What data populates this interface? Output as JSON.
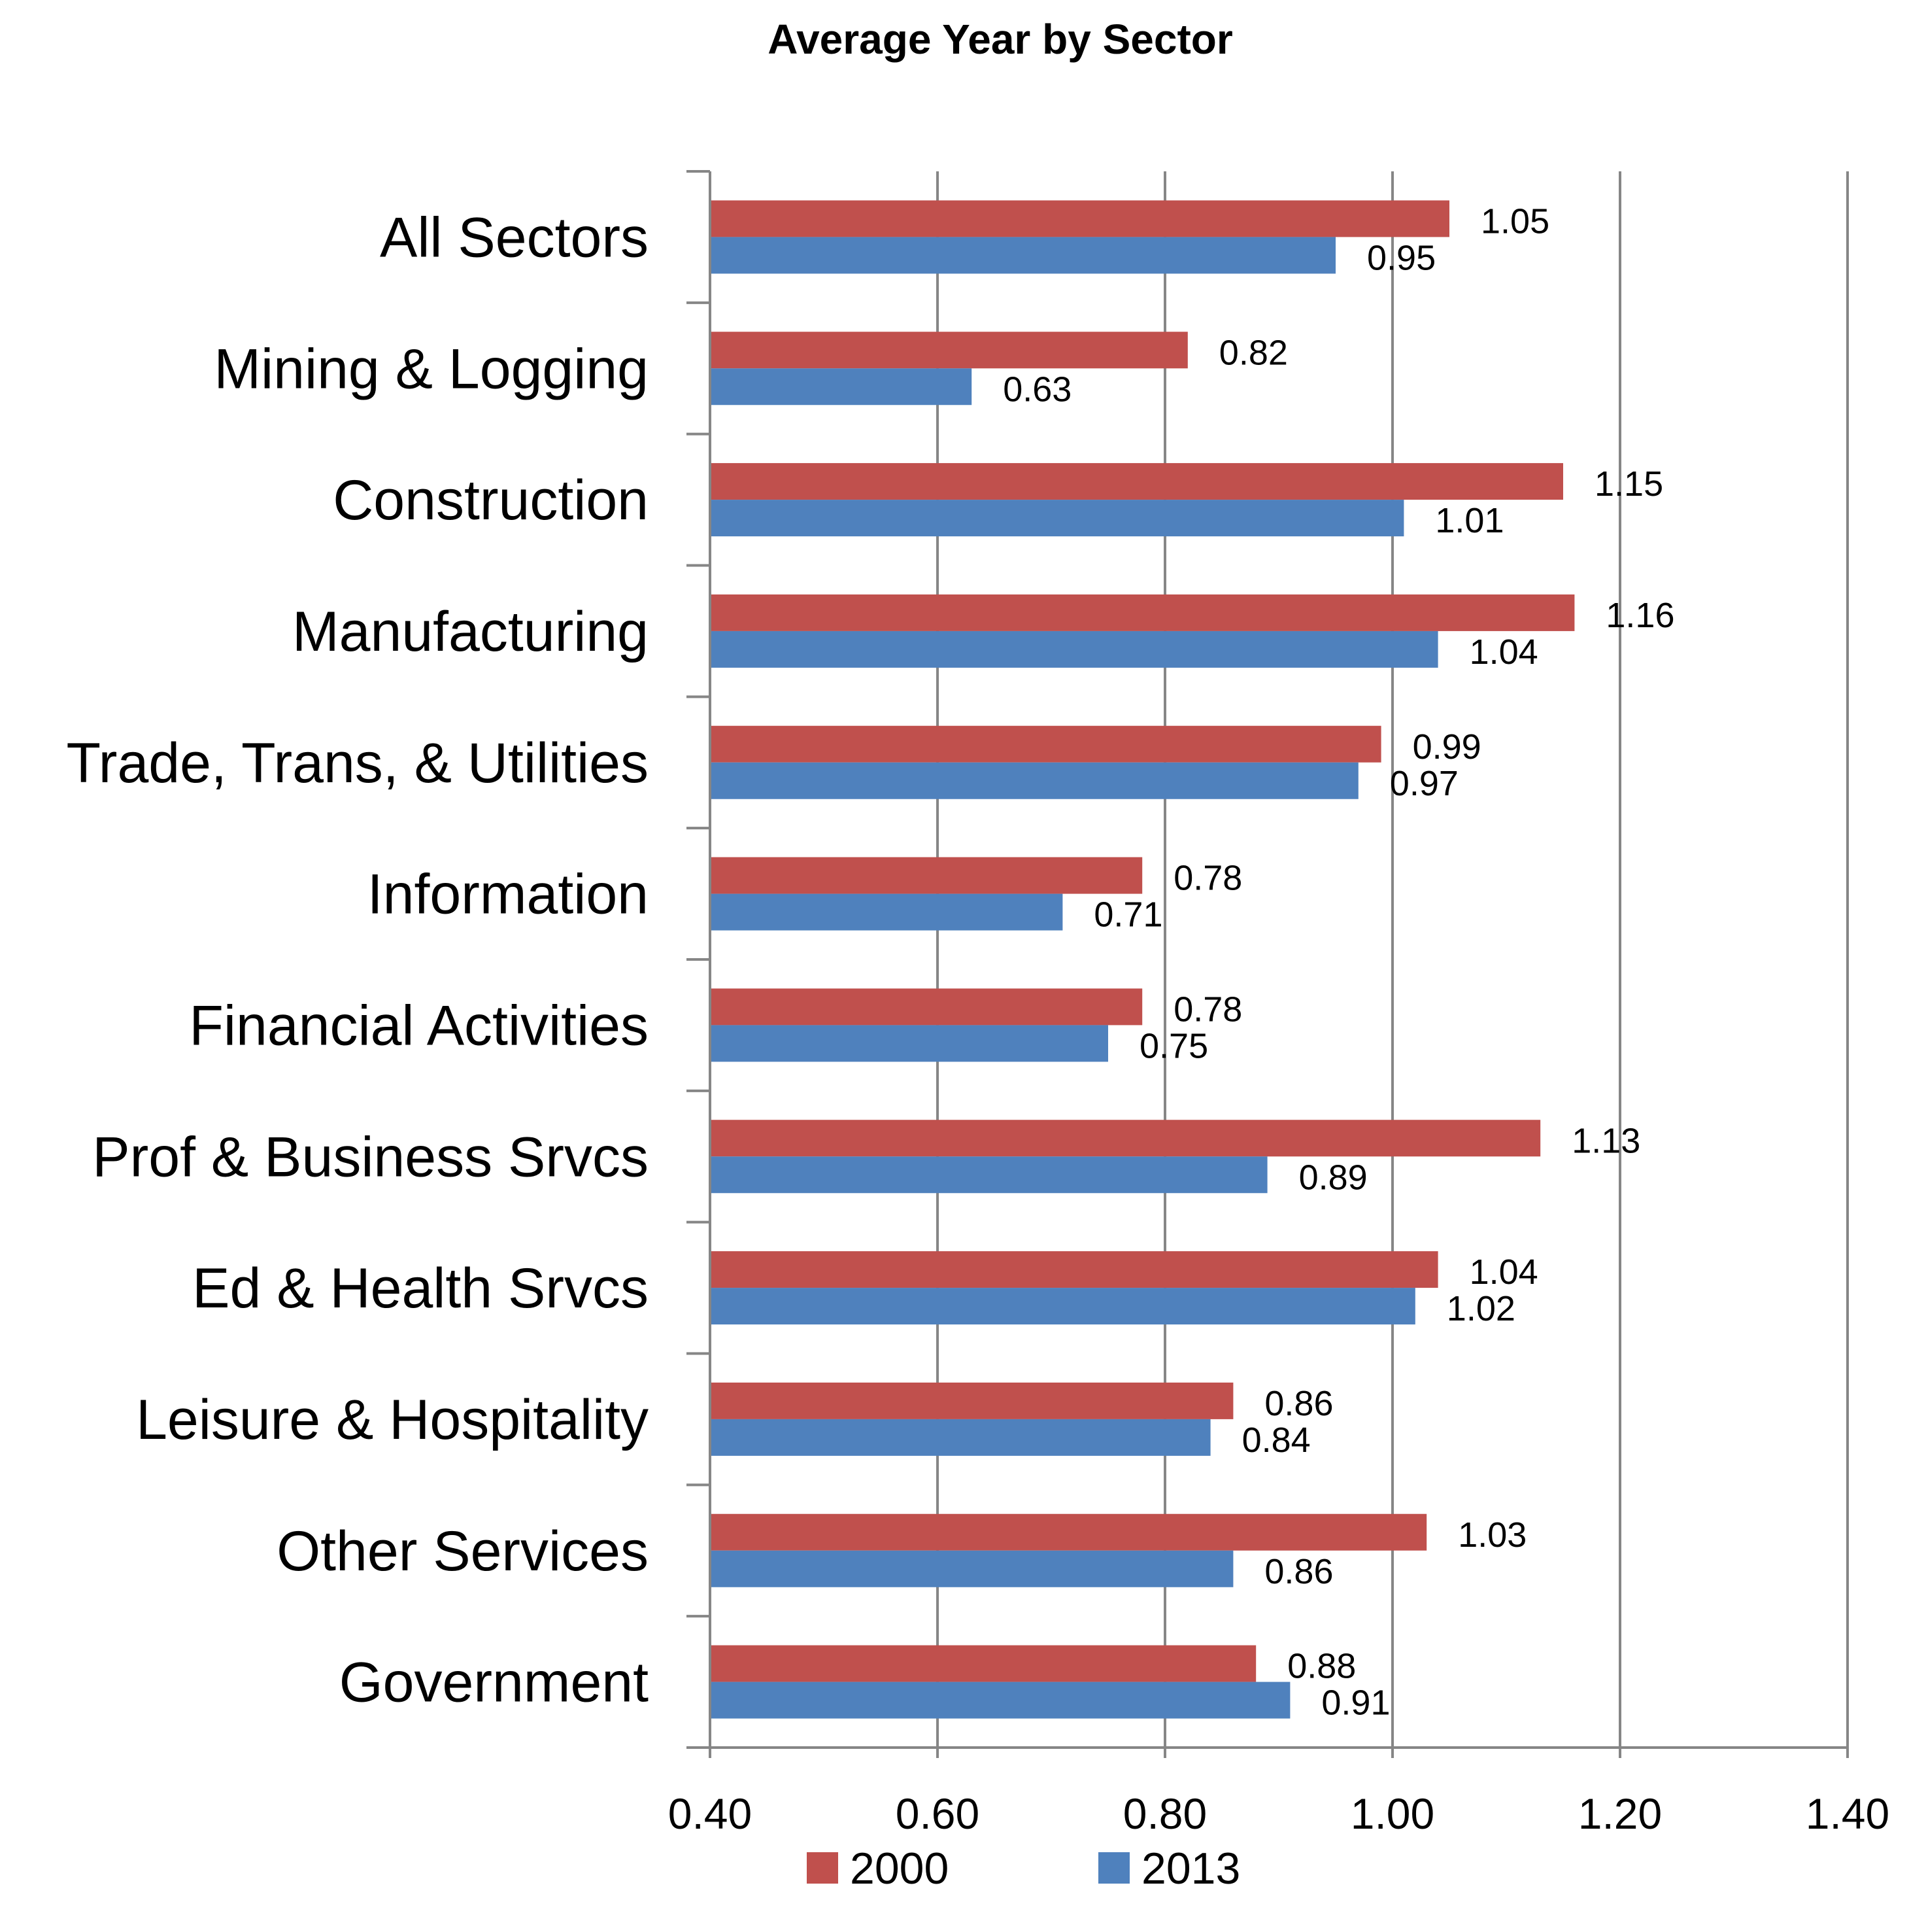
{
  "chart_data": {
    "type": "bar",
    "orientation": "horizontal",
    "title": "Average Year by Sector",
    "xlabel": "",
    "ylabel": "",
    "xlim": [
      0.4,
      1.4
    ],
    "x_ticks": [
      "0.40",
      "0.60",
      "0.80",
      "1.00",
      "1.20",
      "1.40"
    ],
    "grid": true,
    "legend_position": "bottom",
    "categories": [
      "All Sectors",
      "Mining & Logging",
      "Construction",
      "Manufacturing",
      "Trade, Trans, & Utilities",
      "Information",
      "Financial Activities",
      "Prof & Business Srvcs",
      "Ed & Health Srvcs",
      "Leisure & Hospitality",
      "Other Services",
      "Government"
    ],
    "series": [
      {
        "name": "2000",
        "color": "#C0504D",
        "values": [
          1.05,
          0.82,
          1.15,
          1.16,
          0.99,
          0.78,
          0.78,
          1.13,
          1.04,
          0.86,
          1.03,
          0.88
        ],
        "labels": [
          "1.05",
          "0.82",
          "1.15",
          "1.16",
          "0.99",
          "0.78",
          "0.78",
          "1.13",
          "1.04",
          "0.86",
          "1.03",
          "0.88"
        ]
      },
      {
        "name": "2013",
        "color": "#4F81BD",
        "values": [
          0.95,
          0.63,
          1.01,
          1.04,
          0.97,
          0.71,
          0.75,
          0.89,
          1.02,
          0.84,
          0.86,
          0.91
        ],
        "labels": [
          "0.95",
          "0.63",
          "1.01",
          "1.04",
          "0.97",
          "0.71",
          "0.75",
          "0.89",
          "1.02",
          "0.84",
          "0.86",
          "0.91"
        ]
      }
    ]
  }
}
